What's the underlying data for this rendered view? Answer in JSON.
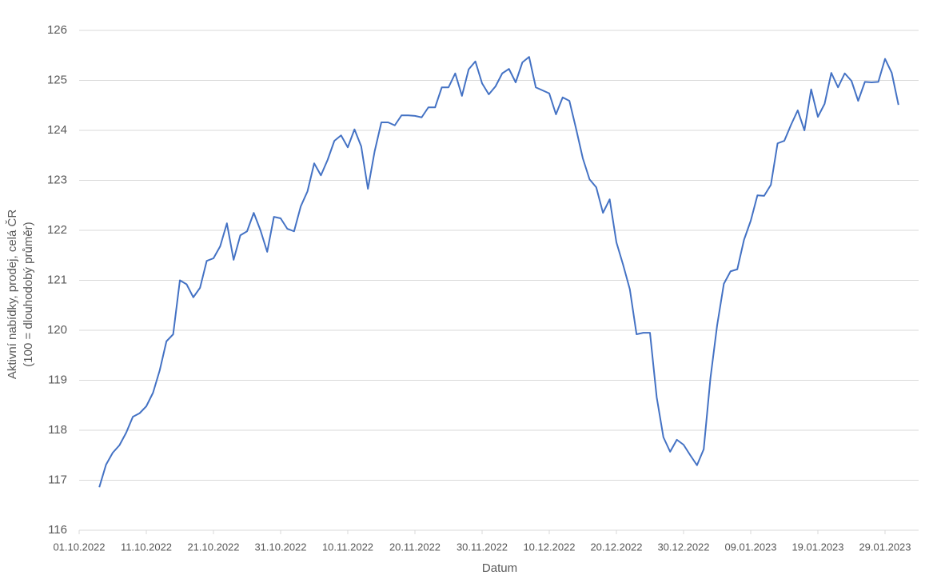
{
  "chart_data": {
    "type": "line",
    "y_label": [
      "Aktivní nabídky, prodej, celá ČR",
      "(100 = dlouhodobý průměr)"
    ],
    "x_label": "Datum",
    "grid": true,
    "xlim": [
      "01.10.2022",
      "03.02.2023"
    ],
    "xticks": [
      "01.10.2022",
      "11.10.2022",
      "21.10.2022",
      "31.10.2022",
      "10.11.2022",
      "20.11.2022",
      "30.11.2022",
      "10.12.2022",
      "20.12.2022",
      "30.12.2022",
      "09.01.2023",
      "19.01.2023",
      "29.01.2023"
    ],
    "ylim": [
      116,
      126
    ],
    "yticks": [
      116,
      117,
      118,
      119,
      120,
      121,
      122,
      123,
      124,
      125,
      126
    ],
    "x": [
      "04.10.2022",
      "05.10.2022",
      "06.10.2022",
      "07.10.2022",
      "08.10.2022",
      "09.10.2022",
      "10.10.2022",
      "11.10.2022",
      "12.10.2022",
      "13.10.2022",
      "14.10.2022",
      "15.10.2022",
      "16.10.2022",
      "17.10.2022",
      "18.10.2022",
      "19.10.2022",
      "20.10.2022",
      "21.10.2022",
      "22.10.2022",
      "23.10.2022",
      "24.10.2022",
      "25.10.2022",
      "26.10.2022",
      "27.10.2022",
      "28.10.2022",
      "29.10.2022",
      "30.10.2022",
      "31.10.2022",
      "01.11.2022",
      "02.11.2022",
      "03.11.2022",
      "04.11.2022",
      "05.11.2022",
      "06.11.2022",
      "07.11.2022",
      "08.11.2022",
      "09.11.2022",
      "10.11.2022",
      "11.11.2022",
      "12.11.2022",
      "13.11.2022",
      "14.11.2022",
      "15.11.2022",
      "16.11.2022",
      "17.11.2022",
      "18.11.2022",
      "19.11.2022",
      "20.11.2022",
      "21.11.2022",
      "22.11.2022",
      "23.11.2022",
      "24.11.2022",
      "25.11.2022",
      "26.11.2022",
      "27.11.2022",
      "28.11.2022",
      "29.11.2022",
      "30.11.2022",
      "01.12.2022",
      "02.12.2022",
      "03.12.2022",
      "04.12.2022",
      "05.12.2022",
      "06.12.2022",
      "07.12.2022",
      "08.12.2022",
      "09.12.2022",
      "10.12.2022",
      "11.12.2022",
      "12.12.2022",
      "13.12.2022",
      "14.12.2022",
      "15.12.2022",
      "16.12.2022",
      "17.12.2022",
      "18.12.2022",
      "19.12.2022",
      "20.12.2022",
      "21.12.2022",
      "22.12.2022",
      "23.12.2022",
      "24.12.2022",
      "25.12.2022",
      "26.12.2022",
      "27.12.2022",
      "28.12.2022",
      "29.12.2022",
      "30.12.2022",
      "31.12.2022",
      "01.01.2023",
      "02.01.2023",
      "03.01.2023",
      "04.01.2023",
      "05.01.2023",
      "06.01.2023",
      "07.01.2023",
      "08.01.2023",
      "09.01.2023",
      "10.01.2023",
      "11.01.2023",
      "12.01.2023",
      "13.01.2023",
      "14.01.2023",
      "15.01.2023",
      "16.01.2023",
      "17.01.2023",
      "18.01.2023",
      "19.01.2023",
      "20.01.2023",
      "21.01.2023",
      "22.01.2023",
      "23.01.2023",
      "24.01.2023",
      "25.01.2023",
      "26.01.2023",
      "27.01.2023",
      "28.01.2023",
      "29.01.2023",
      "30.01.2023",
      "31.01.2023"
    ],
    "series": [
      {
        "color": "#4472c4",
        "values": [
          116.86,
          117.31,
          117.55,
          117.7,
          117.95,
          118.27,
          118.34,
          118.48,
          118.75,
          119.2,
          119.78,
          119.92,
          121.0,
          120.92,
          120.66,
          120.85,
          121.39,
          121.44,
          121.68,
          122.14,
          121.41,
          121.9,
          121.98,
          122.35,
          122.0,
          121.57,
          122.27,
          122.24,
          122.03,
          121.98,
          122.48,
          122.78,
          123.34,
          123.1,
          123.41,
          123.79,
          123.9,
          123.66,
          124.02,
          123.68,
          122.83,
          123.58,
          124.16,
          124.16,
          124.1,
          124.3,
          124.3,
          124.29,
          124.26,
          124.46,
          124.46,
          124.86,
          124.86,
          125.14,
          124.69,
          125.22,
          125.38,
          124.94,
          124.72,
          124.88,
          125.14,
          125.23,
          124.96,
          125.36,
          125.47,
          124.86,
          124.8,
          124.74,
          124.32,
          124.66,
          124.59,
          124.03,
          123.44,
          123.02,
          122.86,
          122.35,
          122.62,
          121.76,
          121.31,
          120.82,
          119.92,
          119.95,
          119.95,
          118.66,
          117.86,
          117.57,
          117.81,
          117.71,
          117.5,
          117.3,
          117.62,
          119.04,
          120.1,
          120.93,
          121.18,
          121.22,
          121.81,
          122.19,
          122.7,
          122.69,
          122.91,
          123.74,
          123.79,
          124.11,
          124.4,
          124.0,
          124.82,
          124.27,
          124.53,
          125.15,
          124.86,
          125.14,
          124.99,
          124.59,
          124.97,
          124.96,
          124.97,
          125.43,
          125.15,
          124.51
        ]
      }
    ]
  }
}
